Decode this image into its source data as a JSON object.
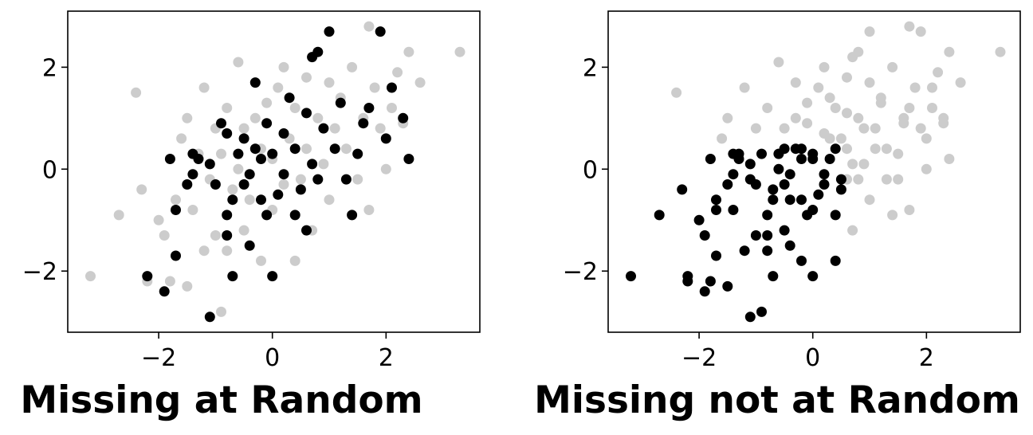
{
  "chart_data": [
    {
      "type": "scatter",
      "title": "Missing at Random",
      "xlabel": "",
      "ylabel": "",
      "xlim": [
        -3.6,
        3.65
      ],
      "ylim": [
        -3.2,
        3.1
      ],
      "xticks": [
        -2,
        0,
        2
      ],
      "yticks": [
        -2,
        0,
        2
      ],
      "grid": false,
      "colors": {
        "observed": "#cccccc",
        "missing": "#000000"
      },
      "series": [
        {
          "role": "observed",
          "points": [
            [
              -3.2,
              -2.1
            ],
            [
              -2.7,
              -0.9
            ],
            [
              -2.4,
              1.5
            ],
            [
              -2.3,
              -0.4
            ],
            [
              -2.2,
              -2.2
            ],
            [
              -2.0,
              -1.0
            ],
            [
              -1.9,
              -1.3
            ],
            [
              -1.8,
              -2.2
            ],
            [
              -1.7,
              -0.6
            ],
            [
              -1.6,
              0.6
            ],
            [
              -1.5,
              -2.3
            ],
            [
              -1.5,
              1.0
            ],
            [
              -1.4,
              -0.8
            ],
            [
              -1.3,
              0.3
            ],
            [
              -1.2,
              -1.6
            ],
            [
              -1.2,
              1.6
            ],
            [
              -1.1,
              -0.2
            ],
            [
              -1.0,
              -1.3
            ],
            [
              -1.0,
              0.8
            ],
            [
              -0.9,
              -2.8
            ],
            [
              -0.9,
              0.3
            ],
            [
              -0.8,
              -1.6
            ],
            [
              -0.8,
              1.2
            ],
            [
              -0.7,
              -0.4
            ],
            [
              -0.6,
              2.1
            ],
            [
              -0.6,
              0.0
            ],
            [
              -0.5,
              -1.2
            ],
            [
              -0.5,
              0.8
            ],
            [
              -0.4,
              -0.6
            ],
            [
              -0.3,
              1.0
            ],
            [
              -0.2,
              -1.8
            ],
            [
              -0.2,
              0.4
            ],
            [
              -0.1,
              1.3
            ],
            [
              0.0,
              -0.8
            ],
            [
              0.0,
              0.2
            ],
            [
              0.1,
              1.6
            ],
            [
              0.2,
              -0.3
            ],
            [
              0.2,
              2.0
            ],
            [
              0.3,
              0.6
            ],
            [
              0.4,
              -1.8
            ],
            [
              0.4,
              1.2
            ],
            [
              0.5,
              -0.2
            ],
            [
              0.6,
              1.8
            ],
            [
              0.6,
              0.4
            ],
            [
              0.7,
              -1.2
            ],
            [
              0.8,
              1.0
            ],
            [
              0.9,
              0.1
            ],
            [
              1.0,
              1.7
            ],
            [
              1.0,
              -0.6
            ],
            [
              1.1,
              0.8
            ],
            [
              1.2,
              1.4
            ],
            [
              1.3,
              0.4
            ],
            [
              1.4,
              2.0
            ],
            [
              1.5,
              -0.2
            ],
            [
              1.6,
              1.0
            ],
            [
              1.7,
              -0.8
            ],
            [
              1.7,
              2.8
            ],
            [
              1.8,
              1.6
            ],
            [
              1.9,
              0.8
            ],
            [
              2.0,
              0.0
            ],
            [
              2.1,
              1.2
            ],
            [
              2.2,
              1.9
            ],
            [
              2.3,
              0.9
            ],
            [
              2.4,
              2.3
            ],
            [
              2.6,
              1.7
            ],
            [
              3.3,
              2.3
            ]
          ]
        },
        {
          "role": "missing",
          "points": [
            [
              -2.2,
              -2.1
            ],
            [
              -1.9,
              -2.4
            ],
            [
              -1.8,
              0.2
            ],
            [
              -1.7,
              -1.7
            ],
            [
              -1.7,
              -0.8
            ],
            [
              -1.5,
              -0.3
            ],
            [
              -1.4,
              -0.1
            ],
            [
              -1.4,
              0.3
            ],
            [
              -1.3,
              0.2
            ],
            [
              -1.1,
              -2.9
            ],
            [
              -1.1,
              0.1
            ],
            [
              -1.0,
              -0.3
            ],
            [
              -0.9,
              0.9
            ],
            [
              -0.8,
              -1.3
            ],
            [
              -0.8,
              -0.9
            ],
            [
              -0.8,
              0.7
            ],
            [
              -0.7,
              -2.1
            ],
            [
              -0.7,
              -0.6
            ],
            [
              -0.6,
              0.3
            ],
            [
              -0.5,
              -0.3
            ],
            [
              -0.5,
              0.6
            ],
            [
              -0.4,
              -1.5
            ],
            [
              -0.4,
              -0.1
            ],
            [
              -0.3,
              0.4
            ],
            [
              -0.3,
              1.7
            ],
            [
              -0.2,
              -0.6
            ],
            [
              -0.2,
              0.2
            ],
            [
              -0.1,
              0.9
            ],
            [
              -0.1,
              -0.9
            ],
            [
              0.0,
              -2.1
            ],
            [
              0.0,
              0.3
            ],
            [
              0.1,
              -0.5
            ],
            [
              0.2,
              0.7
            ],
            [
              0.2,
              -0.1
            ],
            [
              0.3,
              1.4
            ],
            [
              0.4,
              -0.9
            ],
            [
              0.4,
              0.4
            ],
            [
              0.5,
              -0.4
            ],
            [
              0.6,
              1.1
            ],
            [
              0.6,
              -1.2
            ],
            [
              0.7,
              0.1
            ],
            [
              0.7,
              2.2
            ],
            [
              0.8,
              -0.2
            ],
            [
              0.8,
              2.3
            ],
            [
              0.9,
              0.8
            ],
            [
              1.0,
              2.7
            ],
            [
              1.1,
              0.4
            ],
            [
              1.2,
              1.3
            ],
            [
              1.3,
              -0.2
            ],
            [
              1.4,
              -0.9
            ],
            [
              1.5,
              0.3
            ],
            [
              1.6,
              0.9
            ],
            [
              1.7,
              1.2
            ],
            [
              1.9,
              2.7
            ],
            [
              2.0,
              0.6
            ],
            [
              2.1,
              1.6
            ],
            [
              2.3,
              1.0
            ],
            [
              2.4,
              0.2
            ]
          ]
        }
      ]
    },
    {
      "type": "scatter",
      "title": "Missing not at Random",
      "xlabel": "",
      "ylabel": "",
      "xlim": [
        -3.6,
        3.65
      ],
      "ylim": [
        -3.2,
        3.1
      ],
      "xticks": [
        -2,
        0,
        2
      ],
      "yticks": [
        -2,
        0,
        2
      ],
      "grid": false,
      "colors": {
        "observed": "#cccccc",
        "missing": "#000000"
      },
      "series": [
        {
          "role": "observed",
          "points": [
            [
              -2.4,
              1.5
            ],
            [
              -1.6,
              0.6
            ],
            [
              -1.5,
              1.0
            ],
            [
              -1.2,
              1.6
            ],
            [
              -1.0,
              0.8
            ],
            [
              -0.8,
              1.2
            ],
            [
              -0.6,
              2.1
            ],
            [
              -0.5,
              0.8
            ],
            [
              -0.3,
              1.0
            ],
            [
              -0.3,
              1.7
            ],
            [
              -0.1,
              1.3
            ],
            [
              -0.1,
              0.9
            ],
            [
              0.1,
              1.6
            ],
            [
              0.2,
              2.0
            ],
            [
              0.2,
              0.7
            ],
            [
              0.3,
              0.6
            ],
            [
              0.3,
              1.4
            ],
            [
              0.4,
              1.2
            ],
            [
              0.5,
              0.6
            ],
            [
              0.6,
              1.8
            ],
            [
              0.6,
              0.4
            ],
            [
              0.6,
              1.1
            ],
            [
              0.6,
              -0.2
            ],
            [
              0.7,
              -1.2
            ],
            [
              0.7,
              0.1
            ],
            [
              0.7,
              2.2
            ],
            [
              0.8,
              1.0
            ],
            [
              0.8,
              -0.2
            ],
            [
              0.8,
              2.3
            ],
            [
              0.9,
              0.1
            ],
            [
              0.9,
              0.8
            ],
            [
              1.0,
              1.7
            ],
            [
              1.0,
              -0.6
            ],
            [
              1.0,
              2.7
            ],
            [
              1.1,
              0.8
            ],
            [
              1.1,
              0.4
            ],
            [
              1.2,
              1.4
            ],
            [
              1.2,
              1.3
            ],
            [
              1.3,
              0.4
            ],
            [
              1.3,
              -0.2
            ],
            [
              1.4,
              2.0
            ],
            [
              1.4,
              -0.9
            ],
            [
              1.5,
              -0.2
            ],
            [
              1.5,
              0.3
            ],
            [
              1.6,
              1.0
            ],
            [
              1.6,
              0.9
            ],
            [
              1.7,
              -0.8
            ],
            [
              1.7,
              2.8
            ],
            [
              1.7,
              1.2
            ],
            [
              1.8,
              1.6
            ],
            [
              1.9,
              0.8
            ],
            [
              1.9,
              2.7
            ],
            [
              2.0,
              0.0
            ],
            [
              2.0,
              0.6
            ],
            [
              2.1,
              1.2
            ],
            [
              2.1,
              1.6
            ],
            [
              2.2,
              1.9
            ],
            [
              2.3,
              0.9
            ],
            [
              2.3,
              1.0
            ],
            [
              2.4,
              2.3
            ],
            [
              2.4,
              0.2
            ],
            [
              2.6,
              1.7
            ],
            [
              3.3,
              2.3
            ]
          ]
        },
        {
          "role": "missing",
          "points": [
            [
              -3.2,
              -2.1
            ],
            [
              -2.7,
              -0.9
            ],
            [
              -2.3,
              -0.4
            ],
            [
              -2.2,
              -2.2
            ],
            [
              -2.2,
              -2.1
            ],
            [
              -2.0,
              -1.0
            ],
            [
              -1.9,
              -1.3
            ],
            [
              -1.9,
              -2.4
            ],
            [
              -1.8,
              -2.2
            ],
            [
              -1.8,
              0.2
            ],
            [
              -1.7,
              -0.6
            ],
            [
              -1.7,
              -1.7
            ],
            [
              -1.7,
              -0.8
            ],
            [
              -1.5,
              -2.3
            ],
            [
              -1.5,
              -0.3
            ],
            [
              -1.4,
              -0.8
            ],
            [
              -1.4,
              -0.1
            ],
            [
              -1.4,
              0.3
            ],
            [
              -1.3,
              0.3
            ],
            [
              -1.3,
              0.2
            ],
            [
              -1.2,
              -1.6
            ],
            [
              -1.1,
              -0.2
            ],
            [
              -1.1,
              -2.9
            ],
            [
              -1.1,
              0.1
            ],
            [
              -1.0,
              -1.3
            ],
            [
              -1.0,
              -0.3
            ],
            [
              -0.9,
              -2.8
            ],
            [
              -0.9,
              0.3
            ],
            [
              -0.8,
              -1.6
            ],
            [
              -0.8,
              -1.3
            ],
            [
              -0.8,
              -0.9
            ],
            [
              -0.7,
              -0.4
            ],
            [
              -0.7,
              -2.1
            ],
            [
              -0.7,
              -0.6
            ],
            [
              -0.6,
              0.0
            ],
            [
              -0.6,
              0.3
            ],
            [
              -0.5,
              -1.2
            ],
            [
              -0.5,
              -0.3
            ],
            [
              -0.5,
              0.4
            ],
            [
              -0.4,
              -0.6
            ],
            [
              -0.4,
              -1.5
            ],
            [
              -0.4,
              -0.1
            ],
            [
              -0.3,
              0.4
            ],
            [
              -0.2,
              -1.8
            ],
            [
              -0.2,
              0.4
            ],
            [
              -0.2,
              -0.6
            ],
            [
              -0.2,
              0.2
            ],
            [
              -0.1,
              -0.9
            ],
            [
              0.0,
              -0.8
            ],
            [
              0.0,
              0.2
            ],
            [
              0.0,
              -2.1
            ],
            [
              0.0,
              0.3
            ],
            [
              0.1,
              -0.5
            ],
            [
              0.2,
              -0.3
            ],
            [
              0.2,
              -0.1
            ],
            [
              0.3,
              0.2
            ],
            [
              0.4,
              -1.8
            ],
            [
              0.4,
              -0.9
            ],
            [
              0.4,
              0.4
            ],
            [
              0.5,
              -0.2
            ],
            [
              0.5,
              -0.4
            ]
          ]
        }
      ]
    }
  ]
}
